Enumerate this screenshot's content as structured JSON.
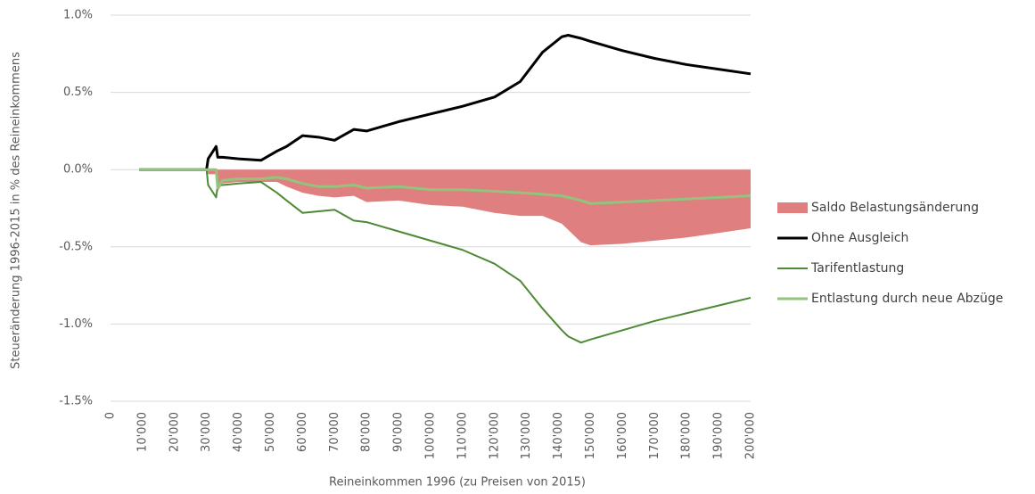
{
  "chart_data": {
    "type": "line",
    "x_label": "Reineinkommen 1996 (zu Preisen von 2015)",
    "y_label": "Steueränderung 1996-2015 in % des Reineinkommens",
    "x": [
      9000,
      30000,
      30500,
      33000,
      33500,
      35000,
      40000,
      47000,
      52000,
      55000,
      60000,
      65000,
      70000,
      76000,
      80000,
      90000,
      100000,
      110000,
      120000,
      128000,
      135000,
      141000,
      143000,
      147000,
      150000,
      160000,
      170000,
      180000,
      190000,
      200000
    ],
    "series": [
      {
        "name": "Saldo Belastungsänderung",
        "type": "area",
        "color": "#e07f7f",
        "values": [
          0,
          0,
          -0.03,
          -0.03,
          -0.14,
          -0.09,
          -0.08,
          -0.08,
          -0.08,
          -0.11,
          -0.15,
          -0.17,
          -0.18,
          -0.17,
          -0.21,
          -0.2,
          -0.23,
          -0.24,
          -0.28,
          -0.3,
          -0.3,
          -0.35,
          -0.39,
          -0.47,
          -0.49,
          -0.48,
          -0.46,
          -0.44,
          -0.41,
          -0.38
        ]
      },
      {
        "name": "Ohne Ausgleich",
        "type": "line",
        "color": "#000000",
        "width": 3,
        "values": [
          0,
          0,
          0.07,
          0.15,
          0.08,
          0.08,
          0.07,
          0.06,
          0.12,
          0.15,
          0.22,
          0.21,
          0.19,
          0.26,
          0.25,
          0.31,
          0.36,
          0.41,
          0.47,
          0.57,
          0.76,
          0.86,
          0.87,
          0.85,
          0.83,
          0.77,
          0.72,
          0.68,
          0.65,
          0.62
        ]
      },
      {
        "name": "Tarifentlastung",
        "type": "line",
        "color": "#4e8a35",
        "width": 2,
        "values": [
          0,
          0,
          -0.1,
          -0.18,
          -0.1,
          -0.1,
          -0.09,
          -0.08,
          -0.15,
          -0.2,
          -0.28,
          -0.27,
          -0.26,
          -0.33,
          -0.34,
          -0.4,
          -0.46,
          -0.52,
          -0.61,
          -0.72,
          -0.9,
          -1.04,
          -1.08,
          -1.12,
          -1.1,
          -1.04,
          -0.98,
          -0.93,
          -0.88,
          -0.83
        ]
      },
      {
        "name": "Entlastung durch neue Abzüge",
        "type": "line",
        "color": "#92c47d",
        "width": 3,
        "values": [
          0,
          0,
          0,
          0,
          -0.12,
          -0.07,
          -0.06,
          -0.06,
          -0.05,
          -0.06,
          -0.09,
          -0.11,
          -0.11,
          -0.1,
          -0.12,
          -0.11,
          -0.13,
          -0.13,
          -0.14,
          -0.15,
          -0.16,
          -0.17,
          -0.18,
          -0.2,
          -0.22,
          -0.21,
          -0.2,
          -0.19,
          -0.18,
          -0.17
        ]
      }
    ],
    "xlim": [
      0,
      200000
    ],
    "xticks": [
      0,
      {
        "value": 10000,
        "label": "10'000"
      },
      {
        "value": 20000,
        "label": "20'000"
      },
      {
        "value": 30000,
        "label": "30'000"
      },
      {
        "value": 40000,
        "label": "40'000"
      },
      {
        "value": 50000,
        "label": "50'000"
      },
      {
        "value": 60000,
        "label": "60'000"
      },
      {
        "value": 70000,
        "label": "70'000"
      },
      {
        "value": 80000,
        "label": "80'000"
      },
      {
        "value": 90000,
        "label": "90'000"
      },
      {
        "value": 100000,
        "label": "100'000"
      },
      {
        "value": 110000,
        "label": "110'000"
      },
      {
        "value": 120000,
        "label": "120'000"
      },
      {
        "value": 130000,
        "label": "130'000"
      },
      {
        "value": 140000,
        "label": "140'000"
      },
      {
        "value": 150000,
        "label": "150'000"
      },
      {
        "value": 160000,
        "label": "160'000"
      },
      {
        "value": 170000,
        "label": "170'000"
      },
      {
        "value": 180000,
        "label": "180'000"
      },
      {
        "value": 190000,
        "label": "190'000"
      },
      {
        "value": 200000,
        "label": "200'000"
      }
    ],
    "ylim": [
      -1.5,
      1.0
    ],
    "yticks": [
      {
        "value": -1.5,
        "label": "-1.5%"
      },
      {
        "value": -1.0,
        "label": "-1.0%"
      },
      {
        "value": -0.5,
        "label": "-0.5%"
      },
      {
        "value": 0,
        "label": "0.0%"
      },
      {
        "value": 0.5,
        "label": "0.5%"
      },
      {
        "value": 1.0,
        "label": "1.0%"
      }
    ],
    "grid": true,
    "legend": "right"
  }
}
